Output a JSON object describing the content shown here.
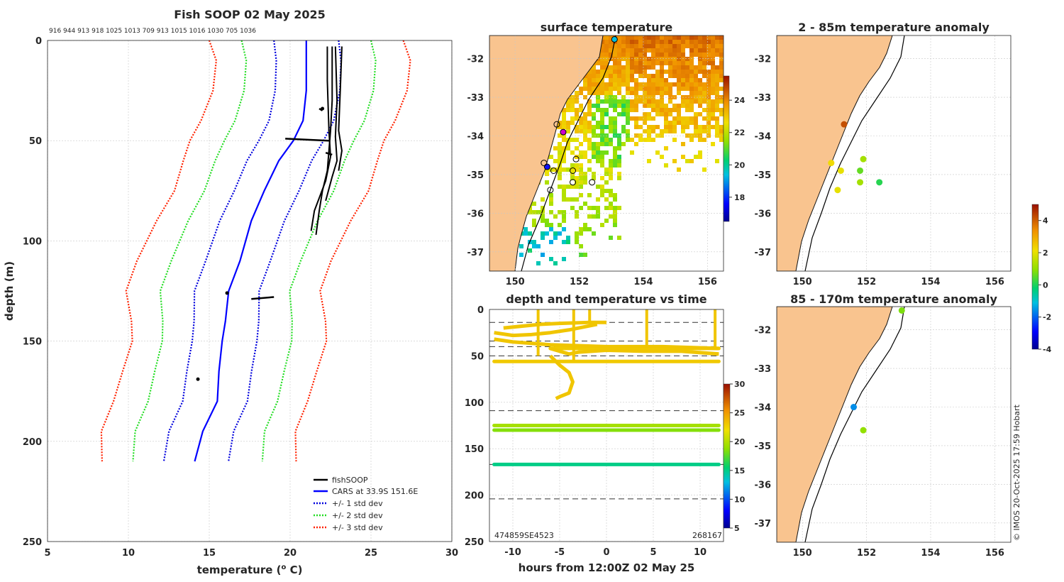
{
  "header": {
    "main_title": "Fish SOOP 02 May 2025",
    "count_row": "916 944 913 918 1025 1013 709 913 1015 1016 1030 705 1036",
    "watermark": "© IMOS 20-Oct-2025 17:59 Hobart"
  },
  "chart_data": [
    {
      "id": "profile",
      "type": "line",
      "title": "Fish SOOP 02 May 2025",
      "xlabel": "temperature (o C)",
      "ylabel": "depth (m)",
      "xlim": [
        5,
        30
      ],
      "ylim": [
        250,
        0
      ],
      "xticks": [
        "5",
        "10",
        "15",
        "20",
        "25",
        "30"
      ],
      "yticks": [
        "0",
        "50",
        "100",
        "150",
        "200",
        "250"
      ],
      "legend": [
        "fishSOOP",
        "CARS at 33.9S 151.6E",
        "+/- 1 std dev",
        "+/- 2 std dev",
        "+/- 3 std dev"
      ],
      "cars": {
        "depth": [
          0,
          10,
          25,
          40,
          50,
          60,
          75,
          90,
          110,
          125,
          140,
          150,
          165,
          180,
          195,
          210
        ],
        "temp": [
          21.0,
          21.0,
          21.0,
          20.8,
          20.2,
          19.3,
          18.4,
          17.6,
          16.9,
          16.2,
          16.0,
          15.8,
          15.6,
          15.5,
          14.6,
          14.1
        ]
      },
      "std_offsets": [
        2.0,
        4.0,
        6.0
      ],
      "series_colors": {
        "fishsoop": "#000000",
        "cars": "#0000ff",
        "std1": "#0000dd",
        "std2": "#22dd22",
        "std3": "#ff2200"
      }
    },
    {
      "id": "surface",
      "type": "heatmap",
      "title": "surface temperature",
      "xticks": [
        "150",
        "152",
        "154",
        "156"
      ],
      "yticks": [
        "-32",
        "-33",
        "-34",
        "-35",
        "-36",
        "-37"
      ],
      "xlim": [
        149.2,
        156.5
      ],
      "ylim": [
        -37.5,
        -31.4
      ],
      "colorbar_ticks": [
        "18",
        "20",
        "22",
        "24"
      ],
      "colorbar_range": [
        16.5,
        25.5
      ]
    },
    {
      "id": "anomaly_shallow",
      "type": "scatter",
      "title": "2 - 85m temperature anomaly",
      "xticks": [
        "150",
        "152",
        "154",
        "156"
      ],
      "yticks": [
        "-32",
        "-33",
        "-34",
        "-35",
        "-36",
        "-37"
      ],
      "xlim": [
        149.2,
        156.5
      ],
      "ylim": [
        -37.5,
        -31.4
      ],
      "points": [
        {
          "lon": 151.3,
          "lat": -33.7,
          "anom": 4.2
        },
        {
          "lon": 150.9,
          "lat": -34.7,
          "anom": 2.2
        },
        {
          "lon": 151.2,
          "lat": -34.9,
          "anom": 2.0
        },
        {
          "lon": 151.9,
          "lat": -34.6,
          "anom": 1.2
        },
        {
          "lon": 151.8,
          "lat": -34.9,
          "anom": 0.6
        },
        {
          "lon": 151.1,
          "lat": -35.4,
          "anom": 2.0
        },
        {
          "lon": 151.8,
          "lat": -35.2,
          "anom": 1.2
        },
        {
          "lon": 152.4,
          "lat": -35.2,
          "anom": 0.1
        }
      ]
    },
    {
      "id": "anomaly_deep",
      "type": "scatter",
      "title": "85 - 170m temperature anomaly",
      "xticks": [
        "150",
        "152",
        "154",
        "156"
      ],
      "yticks": [
        "-32",
        "-33",
        "-34",
        "-35",
        "-36",
        "-37"
      ],
      "xlim": [
        149.2,
        156.5
      ],
      "ylim": [
        -37.5,
        -31.4
      ],
      "points": [
        {
          "lon": 153.1,
          "lat": -31.5,
          "anom": 0.8
        },
        {
          "lon": 151.6,
          "lat": -34.0,
          "anom": -1.6
        },
        {
          "lon": 151.9,
          "lat": -34.6,
          "anom": 1.0
        }
      ]
    },
    {
      "id": "depth_time",
      "type": "scatter",
      "title": "depth and temperature vs time",
      "xlabel": "hours from 12:00Z 02 May 25",
      "xticks": [
        "-10",
        "-5",
        "0",
        "5",
        "10"
      ],
      "yticks": [
        "0",
        "50",
        "100",
        "150",
        "200",
        "250"
      ],
      "xlim": [
        -12.5,
        12.5
      ],
      "ylim": [
        250,
        0
      ],
      "dashed_depths": [
        14,
        34,
        40,
        50,
        109,
        167,
        204
      ],
      "bands": [
        {
          "depth": 125,
          "temp": 19.5,
          "from": -12,
          "to": 12
        },
        {
          "depth": 130,
          "temp": 18.5,
          "from": -12,
          "to": 12
        },
        {
          "depth": 167,
          "temp": 15.0,
          "from": -12,
          "to": 12
        },
        {
          "depth": 56,
          "temp": 23.0,
          "from": -12,
          "to": 12
        },
        {
          "depth": 42,
          "temp": 23.0,
          "from": -6,
          "to": 12
        }
      ],
      "bottom_left_label": "474859SE4523",
      "bottom_right_label": "268167",
      "colorbar_ticks": [
        "5",
        "10",
        "15",
        "20",
        "25",
        "30"
      ],
      "colorbar_range": [
        5,
        30
      ]
    }
  ],
  "anomaly_colorbar": {
    "ticks": [
      "4",
      "2",
      "0",
      "-2",
      "-4"
    ],
    "range": [
      -4,
      5
    ]
  }
}
